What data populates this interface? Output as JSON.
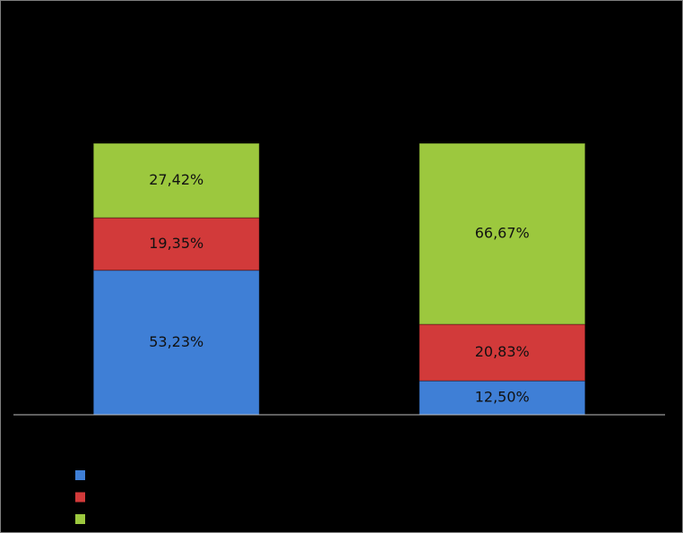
{
  "chart_data": {
    "type": "stacked_bar",
    "categories": [
      null,
      null
    ],
    "series": [
      {
        "color": "#3f7fd6",
        "values": [
          53.23,
          12.5
        ],
        "value_labels": [
          "53,23%",
          "12,50%"
        ]
      },
      {
        "color": "#d23a3a",
        "values": [
          19.35,
          20.83
        ],
        "value_labels": [
          "19,35%",
          "20,83%"
        ]
      },
      {
        "color": "#9cc83e",
        "values": [
          27.42,
          66.67
        ],
        "value_labels": [
          "27,42%",
          "66,67%"
        ]
      }
    ],
    "ylim": [
      0,
      100
    ]
  }
}
